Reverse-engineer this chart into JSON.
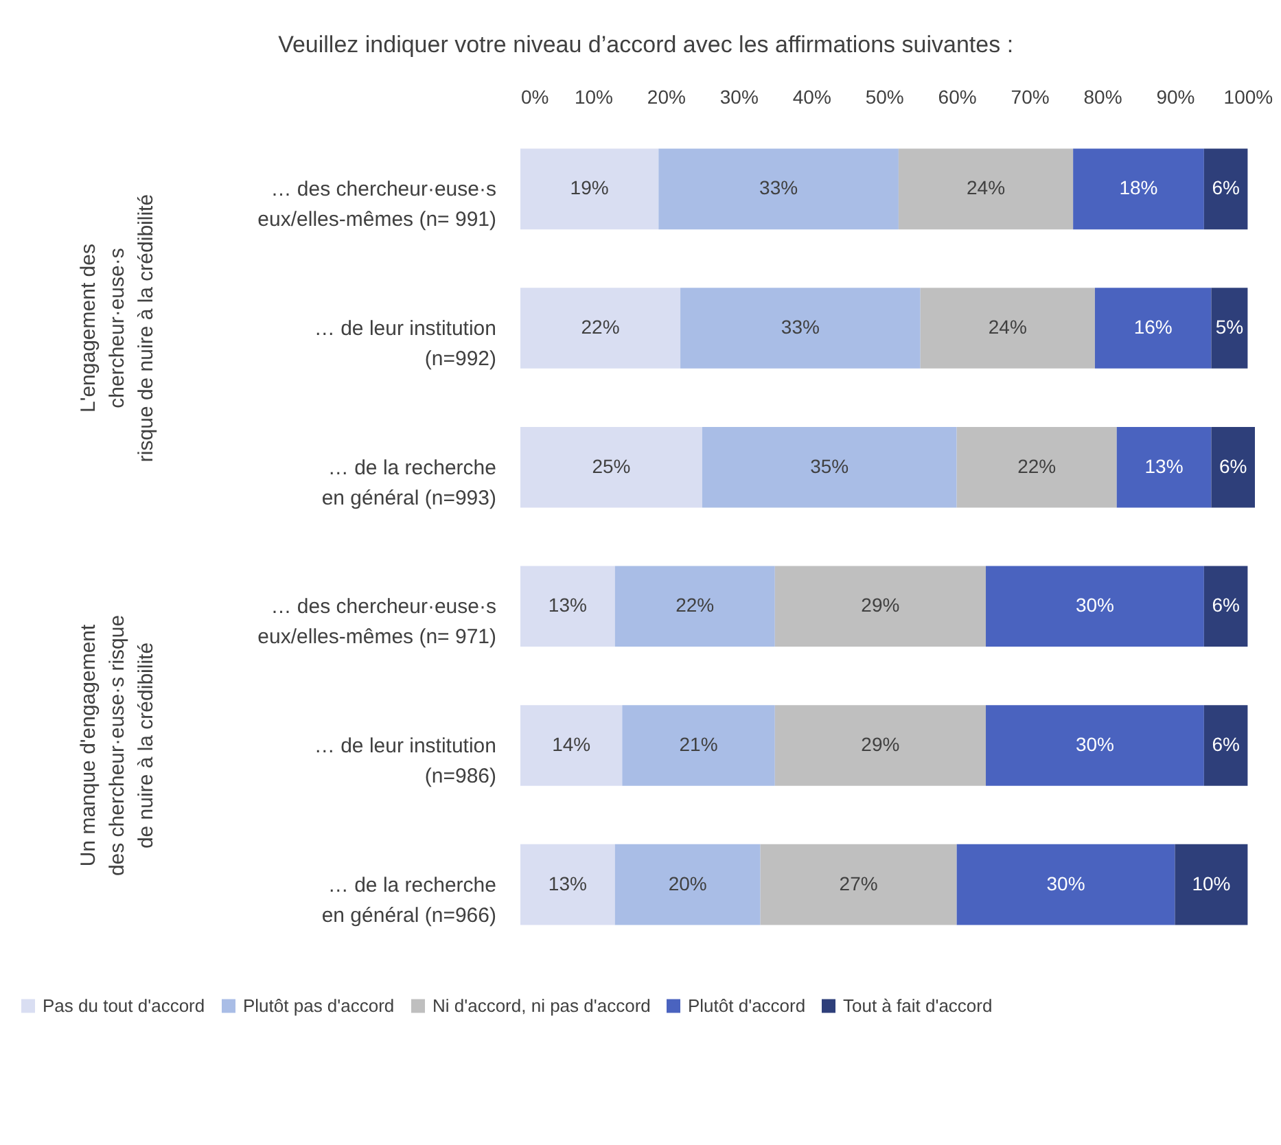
{
  "chart_data": {
    "type": "bar",
    "orientation": "horizontal",
    "stacked": true,
    "title": "Veuillez indiquer votre niveau d’accord avec les affirmations suivantes :",
    "categories": [
      "… des chercheur·euse·s\neux/elles-mêmes (n= 991)",
      "… de leur institution\n(n=992)",
      "… de la recherche\nen général (n=993)",
      "… des chercheur·euse·s\neux/elles-mêmes (n= 971)",
      "… de leur institution\n(n=986)",
      "… de la recherche\nen général (n=966)"
    ],
    "series": [
      {
        "name": "Pas du tout d'accord",
        "color": "#d9def2",
        "values": [
          19,
          22,
          25,
          13,
          14,
          13
        ],
        "value_labels": [
          "19%",
          "22%",
          "25%",
          "13%",
          "14%",
          "13%"
        ]
      },
      {
        "name": "Plutôt pas d'accord",
        "color": "#a9bde6",
        "values": [
          33,
          33,
          35,
          22,
          21,
          20
        ],
        "value_labels": [
          "33%",
          "33%",
          "35%",
          "22%",
          "21%",
          "20%"
        ]
      },
      {
        "name": "Ni d'accord, ni pas d'accord",
        "color": "#bfbfbf",
        "values": [
          24,
          24,
          22,
          29,
          29,
          27
        ],
        "value_labels": [
          "24%",
          "24%",
          "22%",
          "29%",
          "29%",
          "27%"
        ]
      },
      {
        "name": "Plutôt d'accord",
        "color": "#4a63bf",
        "values": [
          18,
          16,
          13,
          30,
          30,
          30
        ],
        "value_labels": [
          "18%",
          "16%",
          "13%",
          "30%",
          "30%",
          "30%"
        ]
      },
      {
        "name": "Tout à fait d'accord",
        "color": "#2e3f7a",
        "values": [
          6,
          5,
          6,
          6,
          6,
          10
        ],
        "value_labels": [
          "6%",
          "5%",
          "6%",
          "6%",
          "6%",
          "10%"
        ]
      }
    ],
    "xlim": [
      0,
      101
    ],
    "xticks": [
      {
        "value": 0,
        "label": "0%"
      },
      {
        "value": 10,
        "label": "10%"
      },
      {
        "value": 20,
        "label": "20%"
      },
      {
        "value": 30,
        "label": "30%"
      },
      {
        "value": 40,
        "label": "40%"
      },
      {
        "value": 50,
        "label": "50%"
      },
      {
        "value": 60,
        "label": "60%"
      },
      {
        "value": 70,
        "label": "70%"
      },
      {
        "value": 80,
        "label": "80%"
      },
      {
        "value": 90,
        "label": "90%"
      },
      {
        "value": 100,
        "label": "100%"
      }
    ],
    "annotations": [
      "L'engagement des\nchercheur·euse·s\nrisque de nuire à la crédibilité",
      "Un manque d'engagement\ndes chercheur·euse·s risque\nde nuire à la crédibilité"
    ],
    "legend": "bottom",
    "grid": false
  }
}
